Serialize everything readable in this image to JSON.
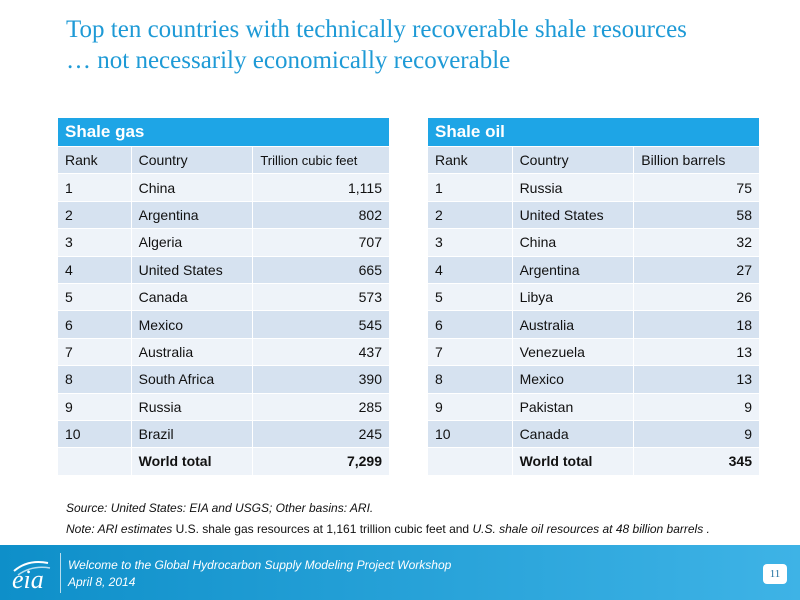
{
  "title": {
    "line1": "Top ten countries with technically recoverable shale resources",
    "line2": "… not necessarily economically recoverable"
  },
  "gas_table": {
    "heading": "Shale gas",
    "columns": [
      "Rank",
      "Country",
      "Trillion cubic feet"
    ],
    "rows": [
      {
        "rank": "1",
        "country": "China",
        "value": "1,115"
      },
      {
        "rank": "2",
        "country": "Argentina",
        "value": "802"
      },
      {
        "rank": "3",
        "country": "Algeria",
        "value": "707"
      },
      {
        "rank": "4",
        "country": "United States",
        "value": "665"
      },
      {
        "rank": "5",
        "country": "Canada",
        "value": "573"
      },
      {
        "rank": "6",
        "country": "Mexico",
        "value": "545"
      },
      {
        "rank": "7",
        "country": "Australia",
        "value": "437"
      },
      {
        "rank": "8",
        "country": "South Africa",
        "value": "390"
      },
      {
        "rank": "9",
        "country": "Russia",
        "value": "285"
      },
      {
        "rank": "10",
        "country": "Brazil",
        "value": "245"
      }
    ],
    "total_label": "World total",
    "total_value": "7,299"
  },
  "oil_table": {
    "heading": "Shale oil",
    "columns": [
      "Rank",
      "Country",
      "Billion barrels"
    ],
    "rows": [
      {
        "rank": "1",
        "country": "Russia",
        "value": "75"
      },
      {
        "rank": "2",
        "country": "United States",
        "value": "58"
      },
      {
        "rank": "3",
        "country": "China",
        "value": "32"
      },
      {
        "rank": "4",
        "country": "Argentina",
        "value": "27"
      },
      {
        "rank": "5",
        "country": "Libya",
        "value": "26"
      },
      {
        "rank": "6",
        "country": "Australia",
        "value": "18"
      },
      {
        "rank": "7",
        "country": "Venezuela",
        "value": "13"
      },
      {
        "rank": "8",
        "country": "Mexico",
        "value": "13"
      },
      {
        "rank": "9",
        "country": "Pakistan",
        "value": "9"
      },
      {
        "rank": "10",
        "country": "Canada",
        "value": "9"
      }
    ],
    "total_label": "World total",
    "total_value": "345"
  },
  "source": "Source:  United States:  EIA and USGS; Other basins: ARI.",
  "note": {
    "part1": "Note: ARI estimates ",
    "part2": "U.S. shale gas resources at 1,161 trillion cubic feet and ",
    "part3": "U.S. shale oil resources at 48 billion barrels ."
  },
  "footer": {
    "logo_text": "eia",
    "line1": "Welcome to the Global Hydrocarbon Supply Modeling Project Workshop",
    "line2": "April 8, 2014",
    "page_number": "11"
  },
  "colors": {
    "title": "#1e9ad6",
    "table_header": "#1ea5e6",
    "row_dark": "#d6e2f0",
    "row_light": "#eef3f9",
    "footer": "#0e8fc9"
  }
}
